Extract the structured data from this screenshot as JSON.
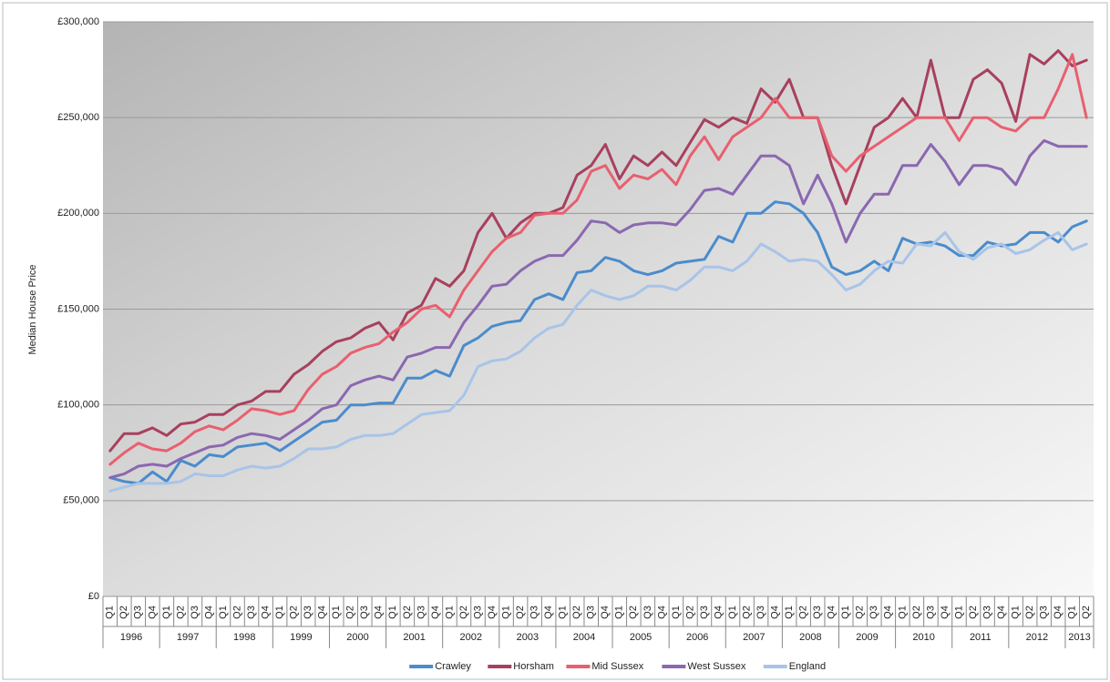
{
  "chart_data": {
    "type": "line",
    "y_label": "Median House Price",
    "categories": [
      "Q1",
      "Q2",
      "Q3",
      "Q4",
      "Q1",
      "Q2",
      "Q3",
      "Q4",
      "Q1",
      "Q2",
      "Q3",
      "Q4",
      "Q1",
      "Q2",
      "Q3",
      "Q4",
      "Q1",
      "Q2",
      "Q3",
      "Q4",
      "Q1",
      "Q2",
      "Q3",
      "Q4",
      "Q1",
      "Q2",
      "Q3",
      "Q4",
      "Q1",
      "Q2",
      "Q3",
      "Q4",
      "Q1",
      "Q2",
      "Q3",
      "Q4",
      "Q1",
      "Q2",
      "Q3",
      "Q4",
      "Q1",
      "Q2",
      "Q3",
      "Q4",
      "Q1",
      "Q2",
      "Q3",
      "Q4",
      "Q1",
      "Q2",
      "Q3",
      "Q4",
      "Q1",
      "Q2",
      "Q3",
      "Q4",
      "Q1",
      "Q2",
      "Q3",
      "Q4",
      "Q1",
      "Q2",
      "Q3",
      "Q4",
      "Q1",
      "Q2",
      "Q3",
      "Q4",
      "Q1",
      "Q2"
    ],
    "year_groups": [
      "1996",
      "1997",
      "1998",
      "1999",
      "2000",
      "2001",
      "2002",
      "2003",
      "2004",
      "2005",
      "2006",
      "2007",
      "2008",
      "2009",
      "2010",
      "2011",
      "2012",
      "2013"
    ],
    "ylim": [
      0,
      300000
    ],
    "yticks": [
      {
        "value": 0,
        "label": "£0"
      },
      {
        "value": 50000,
        "label": "£50,000"
      },
      {
        "value": 100000,
        "label": "£100,000"
      },
      {
        "value": 150000,
        "label": "£150,000"
      },
      {
        "value": 200000,
        "label": "£200,000"
      },
      {
        "value": 250000,
        "label": "£250,000"
      },
      {
        "value": 300000,
        "label": "£300,000"
      }
    ],
    "grid": true,
    "legend": "bottom",
    "series": [
      {
        "name": "Crawley",
        "color": "#4a8ccc",
        "values": [
          62000,
          60000,
          59000,
          65000,
          60000,
          71000,
          68000,
          74000,
          73000,
          78000,
          79000,
          80000,
          76000,
          81000,
          86000,
          91000,
          92000,
          100000,
          100000,
          101000,
          101000,
          114000,
          114000,
          118000,
          115000,
          131000,
          135000,
          141000,
          143000,
          144000,
          155000,
          158000,
          155000,
          169000,
          170000,
          177000,
          175000,
          170000,
          168000,
          170000,
          174000,
          175000,
          176000,
          188000,
          185000,
          200000,
          200000,
          206000,
          205000,
          200000,
          190000,
          172000,
          168000,
          170000,
          175000,
          170000,
          187000,
          184000,
          185000,
          183000,
          178000,
          178000,
          185000,
          183000,
          184000,
          190000,
          190000,
          185000,
          193000,
          196000
        ]
      },
      {
        "name": "Horsham",
        "color": "#a8405e",
        "values": [
          76000,
          85000,
          85000,
          88000,
          84000,
          90000,
          91000,
          95000,
          95000,
          100000,
          102000,
          107000,
          107000,
          116000,
          121000,
          128000,
          133000,
          135000,
          140000,
          143000,
          134000,
          148000,
          152000,
          166000,
          162000,
          170000,
          190000,
          200000,
          187000,
          195000,
          200000,
          200000,
          203000,
          220000,
          225000,
          236000,
          218000,
          230000,
          225000,
          232000,
          225000,
          237000,
          249000,
          245000,
          250000,
          247000,
          265000,
          258000,
          270000,
          250000,
          250000,
          225000,
          205000,
          225000,
          245000,
          250000,
          260000,
          250000,
          280000,
          250000,
          250000,
          270000,
          275000,
          268000,
          248000,
          283000,
          278000,
          285000,
          277000,
          280000
        ]
      },
      {
        "name": "Mid Sussex",
        "color": "#e8606e",
        "values": [
          69000,
          75000,
          80000,
          77000,
          76000,
          80000,
          86000,
          89000,
          87000,
          92000,
          98000,
          97000,
          95000,
          97000,
          108000,
          116000,
          120000,
          127000,
          130000,
          132000,
          138000,
          143000,
          150000,
          152000,
          146000,
          160000,
          170000,
          180000,
          187000,
          190000,
          199000,
          200000,
          200000,
          207000,
          222000,
          225000,
          213000,
          220000,
          218000,
          223000,
          215000,
          230000,
          240000,
          228000,
          240000,
          245000,
          250000,
          260000,
          250000,
          250000,
          250000,
          230000,
          222000,
          230000,
          235000,
          240000,
          245000,
          250000,
          250000,
          250000,
          238000,
          250000,
          250000,
          245000,
          243000,
          250000,
          250000,
          265000,
          283000,
          250000
        ]
      },
      {
        "name": "West Sussex",
        "color": "#8b68b0",
        "values": [
          62000,
          64000,
          68000,
          69000,
          68000,
          72000,
          75000,
          78000,
          79000,
          83000,
          85000,
          84000,
          82000,
          87000,
          92000,
          98000,
          100000,
          110000,
          113000,
          115000,
          113000,
          125000,
          127000,
          130000,
          130000,
          143000,
          152000,
          162000,
          163000,
          170000,
          175000,
          178000,
          178000,
          186000,
          196000,
          195000,
          190000,
          194000,
          195000,
          195000,
          194000,
          202000,
          212000,
          213000,
          210000,
          220000,
          230000,
          230000,
          225000,
          205000,
          220000,
          205000,
          185000,
          200000,
          210000,
          210000,
          225000,
          225000,
          236000,
          227000,
          215000,
          225000,
          225000,
          223000,
          215000,
          230000,
          238000,
          235000,
          235000,
          235000
        ]
      },
      {
        "name": "England",
        "color": "#a8c4e8",
        "values": [
          55000,
          57000,
          59000,
          59000,
          59000,
          60000,
          64000,
          63000,
          63000,
          66000,
          68000,
          67000,
          68000,
          72000,
          77000,
          77000,
          78000,
          82000,
          84000,
          84000,
          85000,
          90000,
          95000,
          96000,
          97000,
          105000,
          120000,
          123000,
          124000,
          128000,
          135000,
          140000,
          142000,
          152000,
          160000,
          157000,
          155000,
          157000,
          162000,
          162000,
          160000,
          165000,
          172000,
          172000,
          170000,
          175000,
          184000,
          180000,
          175000,
          176000,
          175000,
          168000,
          160000,
          163000,
          170000,
          175000,
          174000,
          184000,
          183000,
          190000,
          180000,
          176000,
          182000,
          184000,
          179000,
          181000,
          186000,
          190000,
          181000,
          184000
        ]
      }
    ]
  }
}
